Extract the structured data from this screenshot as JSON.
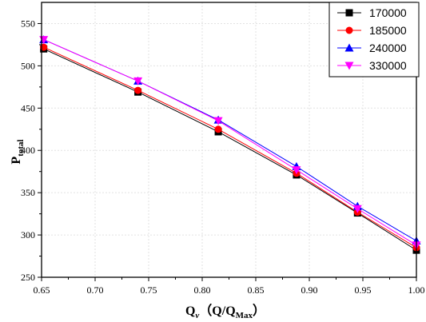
{
  "chart_data": {
    "type": "line",
    "xlabel": {
      "main": "Q",
      "sub": "v",
      "rest": "（Q/Q",
      "sub2": "Max",
      "end": "）"
    },
    "ylabel": {
      "main": "P",
      "sub": "total"
    },
    "xlim": [
      0.65,
      1.0
    ],
    "ylim": [
      250,
      575
    ],
    "xticks": [
      "0.65",
      "0.70",
      "0.75",
      "0.80",
      "0.85",
      "0.90",
      "0.95",
      "1.00"
    ],
    "yticks": [
      "250",
      "300",
      "350",
      "400",
      "450",
      "500",
      "550"
    ],
    "grid": true,
    "legend_position": "top-right",
    "x": [
      0.652,
      0.74,
      0.815,
      0.888,
      0.945,
      1.0
    ],
    "series": [
      {
        "name": "170000",
        "color": "#000000",
        "marker": "square",
        "values": [
          520,
          469,
          422,
          371,
          326,
          282
        ]
      },
      {
        "name": "185000",
        "color": "#ff0000",
        "marker": "circle",
        "values": [
          522,
          471,
          425,
          373,
          327,
          285
        ]
      },
      {
        "name": "240000",
        "color": "#0000ff",
        "marker": "triangle-up",
        "values": [
          531,
          482,
          436,
          381,
          334,
          293
        ]
      },
      {
        "name": "330000",
        "color": "#ff00ff",
        "marker": "triangle-down",
        "values": [
          531,
          482,
          435,
          377,
          331,
          288
        ]
      }
    ]
  }
}
